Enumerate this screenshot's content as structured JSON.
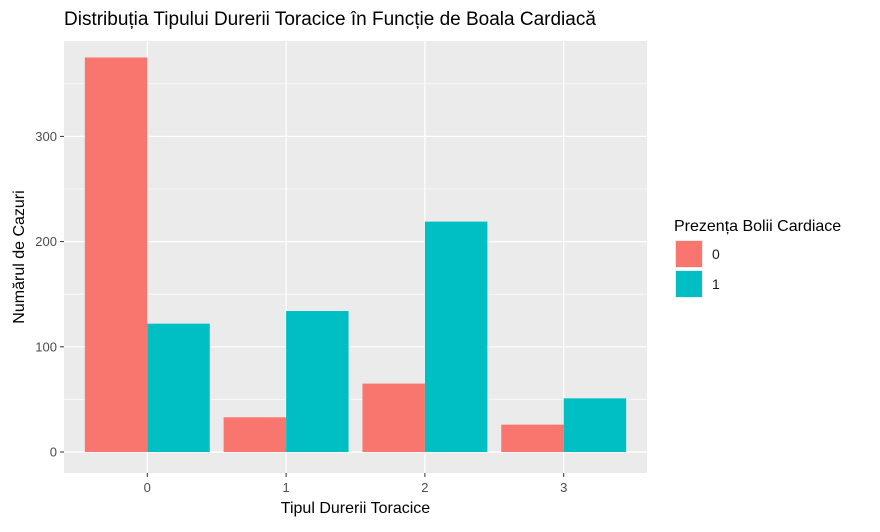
{
  "chart_data": {
    "type": "bar",
    "title": "Distribuția Tipului Durerii Toracice în Funcție de Boala Cardiacă",
    "xlabel": "Tipul Durerii Toracice",
    "ylabel": "Numărul de Cazuri",
    "categories": [
      "0",
      "1",
      "2",
      "3"
    ],
    "series": [
      {
        "name": "0",
        "values": [
          375,
          33,
          65,
          26
        ],
        "color": "#F8766D"
      },
      {
        "name": "1",
        "values": [
          122,
          134,
          219,
          51
        ],
        "color": "#00BFC4"
      }
    ],
    "ylim": [
      0,
      395
    ],
    "yticks": [
      0,
      100,
      200,
      300
    ],
    "grid": true,
    "legend": {
      "title": "Prezența Bolii Cardiace",
      "position": "right"
    },
    "panel_background": "#EBEBEB",
    "grid_color": "#FFFFFF"
  }
}
